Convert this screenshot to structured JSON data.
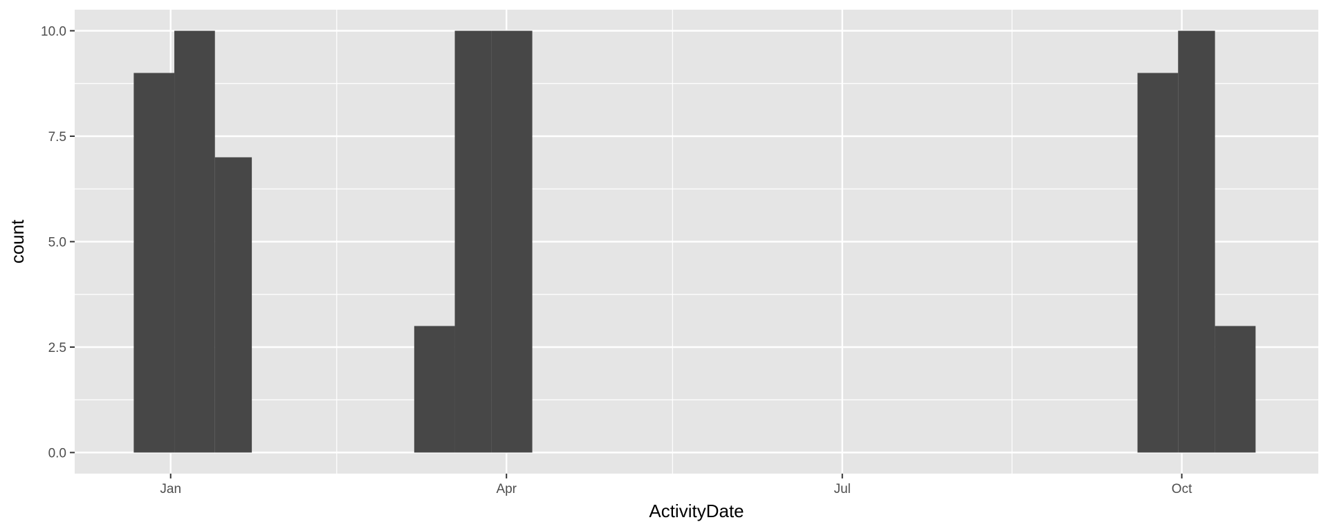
{
  "chart_data": {
    "type": "bar",
    "xlabel": "ActivityDate",
    "ylabel": "count",
    "x_axis": {
      "scale": "date",
      "range": [
        "2015-12-06",
        "2016-11-07"
      ],
      "ticks": [
        {
          "date": "2016-01-01",
          "label": "Jan"
        },
        {
          "date": "2016-04-01",
          "label": "Apr"
        },
        {
          "date": "2016-07-01",
          "label": "Jul"
        },
        {
          "date": "2016-10-01",
          "label": "Oct"
        }
      ],
      "minor_gridlines": [
        "2016-02-15",
        "2016-05-16",
        "2016-08-16"
      ]
    },
    "y_axis": {
      "range": [
        -0.5,
        10.5
      ],
      "ticks": [
        {
          "value": 0,
          "label": "0.0"
        },
        {
          "value": 2.5,
          "label": "2.5"
        },
        {
          "value": 5,
          "label": "5.0"
        },
        {
          "value": 7.5,
          "label": "7.5"
        },
        {
          "value": 10,
          "label": "10.0"
        }
      ],
      "minor_gridlines": [
        1.25,
        3.75,
        6.25,
        8.75
      ]
    },
    "grid": true,
    "colors": {
      "bar": "#474747",
      "panel": "#e5e5e5",
      "grid": "#ffffff"
    },
    "bins": [
      {
        "start": "2015-12-22",
        "end": "2016-01-02",
        "count": 9
      },
      {
        "start": "2016-01-02",
        "end": "2016-01-13",
        "count": 10
      },
      {
        "start": "2016-01-13",
        "end": "2016-01-23",
        "count": 7
      },
      {
        "start": "2016-03-07",
        "end": "2016-03-18",
        "count": 3
      },
      {
        "start": "2016-03-18",
        "end": "2016-03-28",
        "count": 10
      },
      {
        "start": "2016-03-28",
        "end": "2016-04-08",
        "count": 10
      },
      {
        "start": "2016-09-19",
        "end": "2016-09-30",
        "count": 9
      },
      {
        "start": "2016-09-30",
        "end": "2016-10-10",
        "count": 10
      },
      {
        "start": "2016-10-10",
        "end": "2016-10-21",
        "count": 3
      }
    ]
  }
}
